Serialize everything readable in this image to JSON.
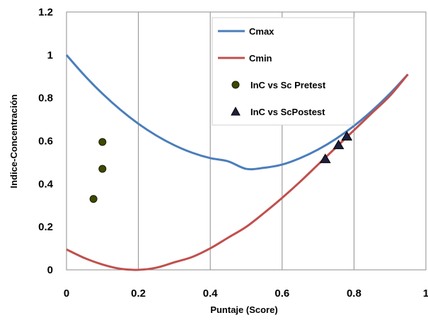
{
  "chart_data": {
    "type": "scatter",
    "title": "",
    "xlabel": "Puntaje (Score)",
    "ylabel": "Indice-Concentración",
    "xlim": [
      0,
      1
    ],
    "ylim": [
      0,
      1.2
    ],
    "x_ticks": [
      0,
      0.2,
      0.4,
      0.6,
      0.8,
      1
    ],
    "x_tick_labels": [
      "0",
      "0.2",
      "0.4",
      "0.6",
      "0.8",
      "1"
    ],
    "y_ticks": [
      0,
      0.2,
      0.4,
      0.6,
      0.8,
      1,
      1.2
    ],
    "y_tick_labels": [
      "0",
      "0.2",
      "0.4",
      "0.6",
      "0.8",
      "1",
      "1.2"
    ],
    "grid": "vertical",
    "legend_position": "top-right",
    "series": [
      {
        "name": "Cmax",
        "kind": "line",
        "color": "#4a7ebb",
        "x": [
          0,
          0.05,
          0.1,
          0.15,
          0.2,
          0.25,
          0.3,
          0.35,
          0.4,
          0.45,
          0.5,
          0.55,
          0.6,
          0.65,
          0.7,
          0.75,
          0.8,
          0.85,
          0.9,
          0.95
        ],
        "y": [
          1.0,
          0.905,
          0.82,
          0.745,
          0.68,
          0.625,
          0.58,
          0.545,
          0.52,
          0.505,
          0.47,
          0.475,
          0.49,
          0.52,
          0.56,
          0.61,
          0.67,
          0.74,
          0.82,
          0.91
        ]
      },
      {
        "name": "Cmin",
        "kind": "line",
        "color": "#c0504d",
        "x": [
          0,
          0.05,
          0.1,
          0.15,
          0.2,
          0.25,
          0.3,
          0.35,
          0.4,
          0.45,
          0.5,
          0.55,
          0.6,
          0.65,
          0.7,
          0.75,
          0.8,
          0.85,
          0.9,
          0.95
        ],
        "y": [
          0.095,
          0.055,
          0.025,
          0.005,
          0.0,
          0.01,
          0.035,
          0.06,
          0.1,
          0.15,
          0.2,
          0.265,
          0.335,
          0.41,
          0.49,
          0.57,
          0.65,
          0.73,
          0.81,
          0.91
        ]
      },
      {
        "name": "InC vs Sc Pretest",
        "kind": "marker",
        "marker": "circle",
        "color": "#1a1a00",
        "marker_fill": "#3a4a00",
        "x": [
          0.075,
          0.1,
          0.1
        ],
        "y": [
          0.33,
          0.47,
          0.595
        ]
      },
      {
        "name": "InC vs ScPostest",
        "kind": "marker",
        "marker": "triangle",
        "color": "#000000",
        "marker_fill": "#1f1f3f",
        "x": [
          0.72,
          0.757,
          0.78
        ],
        "y": [
          0.515,
          0.58,
          0.62
        ]
      }
    ]
  }
}
